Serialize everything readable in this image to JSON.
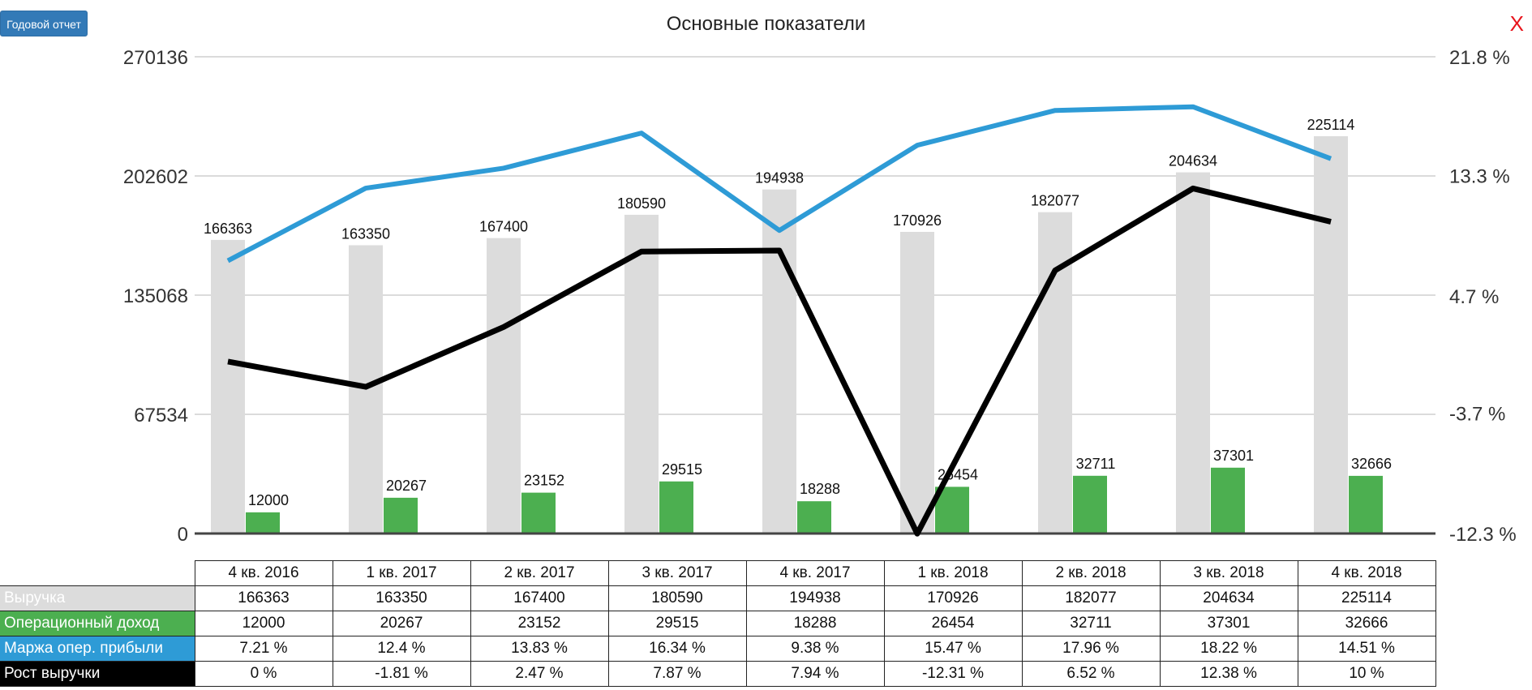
{
  "header": {
    "report_button": "Годовой отчет",
    "title": "Основные показатели",
    "close": "X"
  },
  "colors": {
    "revenue": "#dcdcdc",
    "operating_income": "#4caf50",
    "margin": "#2e9bd6",
    "growth": "#000000",
    "button": "#337ab7",
    "close": "#e8141c"
  },
  "chart_data": {
    "type": "bar",
    "title": "Основные показатели",
    "categories": [
      "4 кв. 2016",
      "1 кв. 2017",
      "2 кв. 2017",
      "3 кв. 2017",
      "4 кв. 2017",
      "1 кв. 2018",
      "2 кв. 2018",
      "3 кв. 2018",
      "4 кв. 2018"
    ],
    "left_axis": {
      "ticks": [
        0,
        67534,
        135068,
        202602,
        270136
      ],
      "tick_labels": [
        "0",
        "67534",
        "135068",
        "202602",
        "270136"
      ],
      "ylim": [
        0,
        270136
      ]
    },
    "right_axis": {
      "ticks": [
        -12.3,
        -3.7,
        4.7,
        13.3,
        21.8
      ],
      "tick_labels": [
        "-12.3 %",
        "-3.7 %",
        "4.7 %",
        "13.3 %",
        "21.8 %"
      ],
      "ylim": [
        -12.3,
        21.8
      ]
    },
    "grid": true,
    "series": [
      {
        "name": "Выручка",
        "kind": "bar",
        "axis": "left",
        "values": [
          166363,
          163350,
          167400,
          180590,
          194938,
          170926,
          182077,
          204634,
          225114
        ]
      },
      {
        "name": "Операционный доход",
        "kind": "bar",
        "axis": "left",
        "values": [
          12000,
          20267,
          23152,
          29515,
          18288,
          26454,
          32711,
          37301,
          32666
        ]
      },
      {
        "name": "Маржа опер. прибыли",
        "kind": "line",
        "axis": "right",
        "values": [
          7.21,
          12.4,
          13.83,
          16.34,
          9.38,
          15.47,
          17.96,
          18.22,
          14.51
        ]
      },
      {
        "name": "Рост выручки",
        "kind": "line",
        "axis": "right",
        "values": [
          0,
          -1.81,
          2.47,
          7.87,
          7.94,
          -12.31,
          6.52,
          12.38,
          10
        ]
      }
    ]
  },
  "table": {
    "rows": [
      {
        "label": "Выручка",
        "cells": [
          "166363",
          "163350",
          "167400",
          "180590",
          "194938",
          "170926",
          "182077",
          "204634",
          "225114"
        ]
      },
      {
        "label": "Операционный доход",
        "cells": [
          "12000",
          "20267",
          "23152",
          "29515",
          "18288",
          "26454",
          "32711",
          "37301",
          "32666"
        ]
      },
      {
        "label": "Маржа опер. прибыли",
        "cells": [
          "7.21 %",
          "12.4 %",
          "13.83 %",
          "16.34 %",
          "9.38 %",
          "15.47 %",
          "17.96 %",
          "18.22 %",
          "14.51 %"
        ]
      },
      {
        "label": "Рост выручки",
        "cells": [
          "0 %",
          "-1.81 %",
          "2.47 %",
          "7.87 %",
          "7.94 %",
          "-12.31 %",
          "6.52 %",
          "12.38 %",
          "10 %"
        ]
      }
    ]
  }
}
